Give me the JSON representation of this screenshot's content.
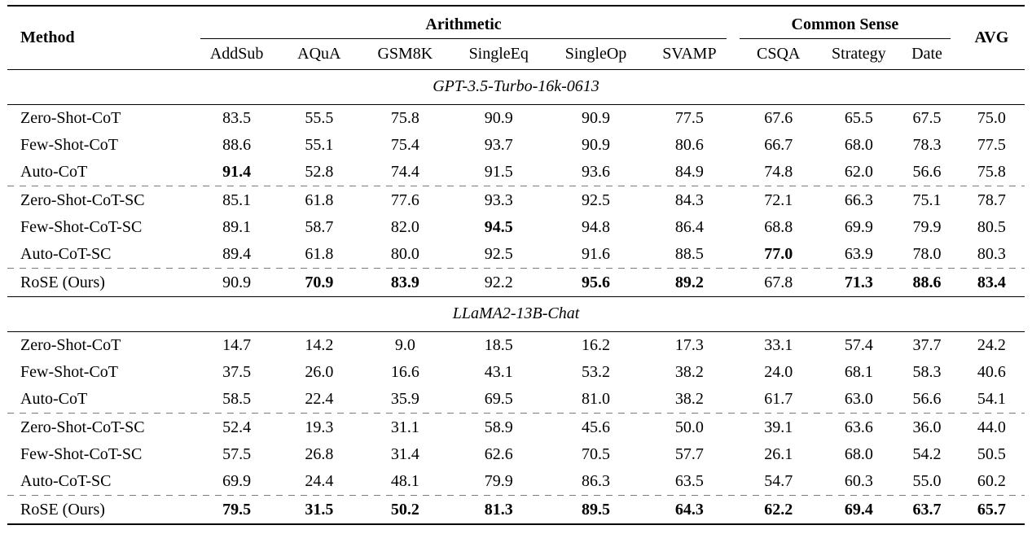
{
  "table": {
    "header": {
      "method": "Method",
      "group_arithmetic": "Arithmetic",
      "group_common_sense": "Common Sense",
      "avg": "AVG",
      "datasets": [
        "AddSub",
        "AQuA",
        "GSM8K",
        "SingleEq",
        "SingleOp",
        "SVAMP",
        "CSQA",
        "Strategy",
        "Date"
      ]
    },
    "colors": {
      "text": "#000000",
      "rule": "#000000",
      "dashed_divider": "#7b7b7b",
      "background": "#ffffff"
    },
    "sections": [
      {
        "title": "GPT-3.5-Turbo-16k-0613",
        "rows": [
          {
            "method": "Zero-Shot-CoT",
            "values": [
              "83.5",
              "55.5",
              "75.8",
              "90.9",
              "90.9",
              "77.5",
              "67.6",
              "65.5",
              "67.5",
              "75.0"
            ],
            "bold": [],
            "dashed_top": false
          },
          {
            "method": "Few-Shot-CoT",
            "values": [
              "88.6",
              "55.1",
              "75.4",
              "93.7",
              "90.9",
              "80.6",
              "66.7",
              "68.0",
              "78.3",
              "77.5"
            ],
            "bold": [],
            "dashed_top": false
          },
          {
            "method": "Auto-CoT",
            "values": [
              "91.4",
              "52.8",
              "74.4",
              "91.5",
              "93.6",
              "84.9",
              "74.8",
              "62.0",
              "56.6",
              "75.8"
            ],
            "bold": [
              0
            ],
            "dashed_top": false
          },
          {
            "method": "Zero-Shot-CoT-SC",
            "values": [
              "85.1",
              "61.8",
              "77.6",
              "93.3",
              "92.5",
              "84.3",
              "72.1",
              "66.3",
              "75.1",
              "78.7"
            ],
            "bold": [],
            "dashed_top": true
          },
          {
            "method": "Few-Shot-CoT-SC",
            "values": [
              "89.1",
              "58.7",
              "82.0",
              "94.5",
              "94.8",
              "86.4",
              "68.8",
              "69.9",
              "79.9",
              "80.5"
            ],
            "bold": [
              3
            ],
            "dashed_top": false
          },
          {
            "method": "Auto-CoT-SC",
            "values": [
              "89.4",
              "61.8",
              "80.0",
              "92.5",
              "91.6",
              "88.5",
              "77.0",
              "63.9",
              "78.0",
              "80.3"
            ],
            "bold": [
              6
            ],
            "dashed_top": false
          },
          {
            "method": "RoSE (Ours)",
            "values": [
              "90.9",
              "70.9",
              "83.9",
              "92.2",
              "95.6",
              "89.2",
              "67.8",
              "71.3",
              "88.6",
              "83.4"
            ],
            "bold": [
              1,
              2,
              4,
              5,
              7,
              8,
              9
            ],
            "dashed_top": true
          }
        ]
      },
      {
        "title": "LLaMA2-13B-Chat",
        "rows": [
          {
            "method": "Zero-Shot-CoT",
            "values": [
              "14.7",
              "14.2",
              "9.0",
              "18.5",
              "16.2",
              "17.3",
              "33.1",
              "57.4",
              "37.7",
              "24.2"
            ],
            "bold": [],
            "dashed_top": false
          },
          {
            "method": "Few-Shot-CoT",
            "values": [
              "37.5",
              "26.0",
              "16.6",
              "43.1",
              "53.2",
              "38.2",
              "24.0",
              "68.1",
              "58.3",
              "40.6"
            ],
            "bold": [],
            "dashed_top": false
          },
          {
            "method": "Auto-CoT",
            "values": [
              "58.5",
              "22.4",
              "35.9",
              "69.5",
              "81.0",
              "38.2",
              "61.7",
              "63.0",
              "56.6",
              "54.1"
            ],
            "bold": [],
            "dashed_top": false
          },
          {
            "method": "Zero-Shot-CoT-SC",
            "values": [
              "52.4",
              "19.3",
              "31.1",
              "58.9",
              "45.6",
              "50.0",
              "39.1",
              "63.6",
              "36.0",
              "44.0"
            ],
            "bold": [],
            "dashed_top": true
          },
          {
            "method": "Few-Shot-CoT-SC",
            "values": [
              "57.5",
              "26.8",
              "31.4",
              "62.6",
              "70.5",
              "57.7",
              "26.1",
              "68.0",
              "54.2",
              "50.5"
            ],
            "bold": [],
            "dashed_top": false
          },
          {
            "method": "Auto-CoT-SC",
            "values": [
              "69.9",
              "24.4",
              "48.1",
              "79.9",
              "86.3",
              "63.5",
              "54.7",
              "60.3",
              "55.0",
              "60.2"
            ],
            "bold": [],
            "dashed_top": false
          },
          {
            "method": "RoSE (Ours)",
            "values": [
              "79.5",
              "31.5",
              "50.2",
              "81.3",
              "89.5",
              "64.3",
              "62.2",
              "69.4",
              "63.7",
              "65.7"
            ],
            "bold": [
              0,
              1,
              2,
              3,
              4,
              5,
              6,
              7,
              8,
              9
            ],
            "dashed_top": true
          }
        ]
      }
    ]
  }
}
